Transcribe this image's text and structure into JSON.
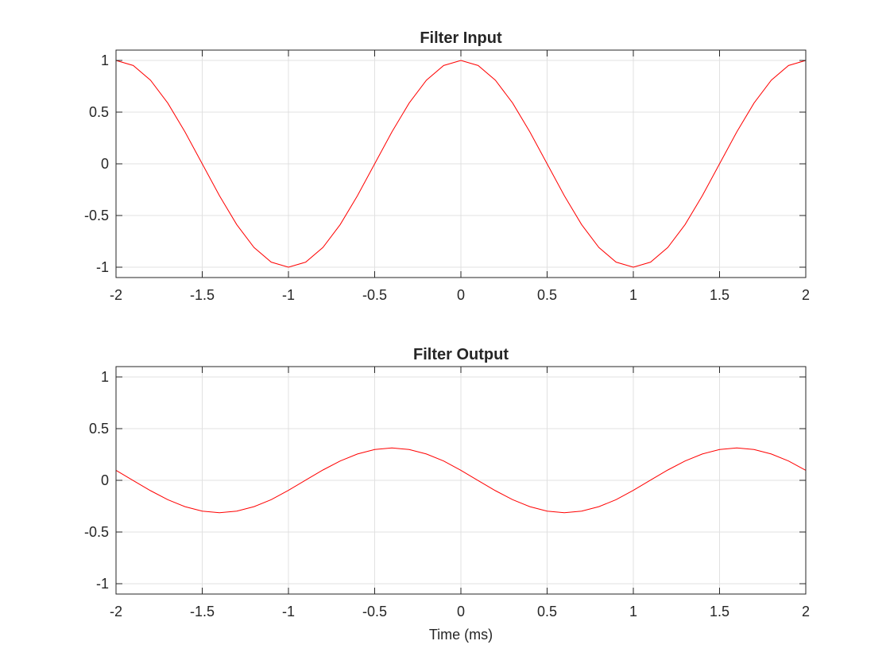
{
  "chart_data": [
    {
      "type": "line",
      "title": "Filter Input",
      "xlabel": "",
      "ylabel": "",
      "xlim": [
        -2,
        2
      ],
      "ylim": [
        -1.1,
        1.1
      ],
      "xticks": [
        -2,
        -1.5,
        -1,
        -0.5,
        0,
        0.5,
        1,
        1.5,
        2
      ],
      "xtick_labels": [
        "-2",
        "-1.5",
        "-1",
        "-0.5",
        "0",
        "0.5",
        "1",
        "1.5",
        "2"
      ],
      "yticks": [
        1,
        0.5,
        0,
        -0.5,
        -1
      ],
      "ytick_labels": [
        "1",
        "0.5",
        "0",
        "-0.5",
        "-1"
      ],
      "grid": true,
      "series": [
        {
          "color": "#ff0000",
          "x": [
            -2,
            -1.9,
            -1.8,
            -1.7,
            -1.6,
            -1.5,
            -1.4,
            -1.3,
            -1.2,
            -1.1,
            -1,
            -0.9,
            -0.8,
            -0.7,
            -0.6,
            -0.5,
            -0.4,
            -0.3,
            -0.2,
            -0.1,
            0,
            0.1,
            0.2,
            0.3,
            0.4,
            0.5,
            0.6,
            0.7,
            0.8,
            0.9,
            1,
            1.1,
            1.2,
            1.3,
            1.4,
            1.5,
            1.6,
            1.7,
            1.8,
            1.9,
            2
          ],
          "y": [
            1,
            0.951,
            0.809,
            0.588,
            0.309,
            0,
            -0.309,
            -0.588,
            -0.809,
            -0.951,
            -1,
            -0.951,
            -0.809,
            -0.588,
            -0.309,
            0,
            0.309,
            0.588,
            0.809,
            0.951,
            1,
            0.951,
            0.809,
            0.588,
            0.309,
            0,
            -0.309,
            -0.588,
            -0.809,
            -0.951,
            -1,
            -0.951,
            -0.809,
            -0.588,
            -0.309,
            0,
            0.309,
            0.588,
            0.809,
            0.951,
            1
          ]
        }
      ]
    },
    {
      "type": "line",
      "title": "Filter Output",
      "xlabel": "Time (ms)",
      "ylabel": "",
      "xlim": [
        -2,
        2
      ],
      "ylim": [
        -1.1,
        1.1
      ],
      "xticks": [
        -2,
        -1.5,
        -1,
        -0.5,
        0,
        0.5,
        1,
        1.5,
        2
      ],
      "xtick_labels": [
        "-2",
        "-1.5",
        "-1",
        "-0.5",
        "0",
        "0.5",
        "1",
        "1.5",
        "2"
      ],
      "yticks": [
        1,
        0.5,
        0,
        -0.5,
        -1
      ],
      "ytick_labels": [
        "1",
        "0.5",
        "0",
        "-0.5",
        "-1"
      ],
      "grid": true,
      "series": [
        {
          "color": "#ff0000",
          "x": [
            -2,
            -1.9,
            -1.8,
            -1.7,
            -1.6,
            -1.5,
            -1.4,
            -1.3,
            -1.2,
            -1.1,
            -1,
            -0.9,
            -0.8,
            -0.7,
            -0.6,
            -0.5,
            -0.4,
            -0.3,
            -0.2,
            -0.1,
            0,
            0.1,
            0.2,
            0.3,
            0.4,
            0.5,
            0.6,
            0.7,
            0.8,
            0.9,
            1,
            1.1,
            1.2,
            1.3,
            1.4,
            1.5,
            1.6,
            1.7,
            1.8,
            1.9,
            2
          ],
          "y": [
            0.097,
            -0.002,
            -0.1,
            -0.187,
            -0.255,
            -0.298,
            -0.313,
            -0.298,
            -0.255,
            -0.187,
            -0.097,
            0.002,
            0.1,
            0.187,
            0.255,
            0.298,
            0.313,
            0.298,
            0.255,
            0.187,
            0.097,
            -0.002,
            -0.1,
            -0.187,
            -0.255,
            -0.298,
            -0.313,
            -0.298,
            -0.255,
            -0.187,
            -0.097,
            0.002,
            0.1,
            0.187,
            0.255,
            0.298,
            0.313,
            0.298,
            0.255,
            0.187,
            0.097
          ]
        }
      ]
    }
  ]
}
